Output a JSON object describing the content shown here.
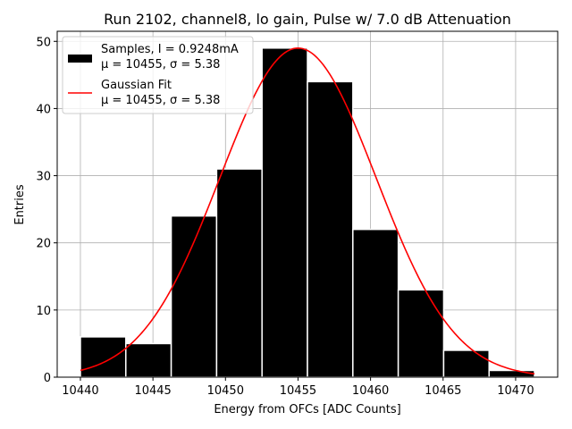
{
  "chart_data": {
    "type": "bar",
    "title": "Run 2102, channel8, lo gain, Pulse w/ 7.0 dB Attenuation",
    "xlabel": "Energy from OFCs [ADC Counts]",
    "ylabel": "Entries",
    "xlim": [
      10438.4,
      10472.9
    ],
    "ylim": [
      0,
      51.5
    ],
    "xticks": [
      10440,
      10445,
      10450,
      10455,
      10460,
      10465,
      10470
    ],
    "yticks": [
      0,
      10,
      20,
      30,
      40,
      50
    ],
    "grid": true,
    "legend_position": "top-left",
    "bin_edges": [
      10440,
      10443.13,
      10446.26,
      10449.39,
      10452.52,
      10455.65,
      10458.78,
      10461.91,
      10465.04,
      10468.17,
      10471.3
    ],
    "values": [
      6,
      5,
      24,
      31,
      49,
      44,
      22,
      13,
      4,
      1
    ],
    "bar_color": "#000000",
    "series": [
      {
        "name": "Samples",
        "kind": "histogram",
        "legend_lines": [
          "Samples, I = 0.9248mA",
          "μ = 10455, σ = 5.38"
        ]
      },
      {
        "name": "Gaussian Fit",
        "kind": "line",
        "color": "#ff0000",
        "mu": 10455,
        "sigma": 5.38,
        "amplitude": 49,
        "x_range": [
          10440,
          10471.3
        ],
        "legend_lines": [
          "Gaussian Fit",
          "μ = 10455, σ = 5.38"
        ]
      }
    ]
  }
}
